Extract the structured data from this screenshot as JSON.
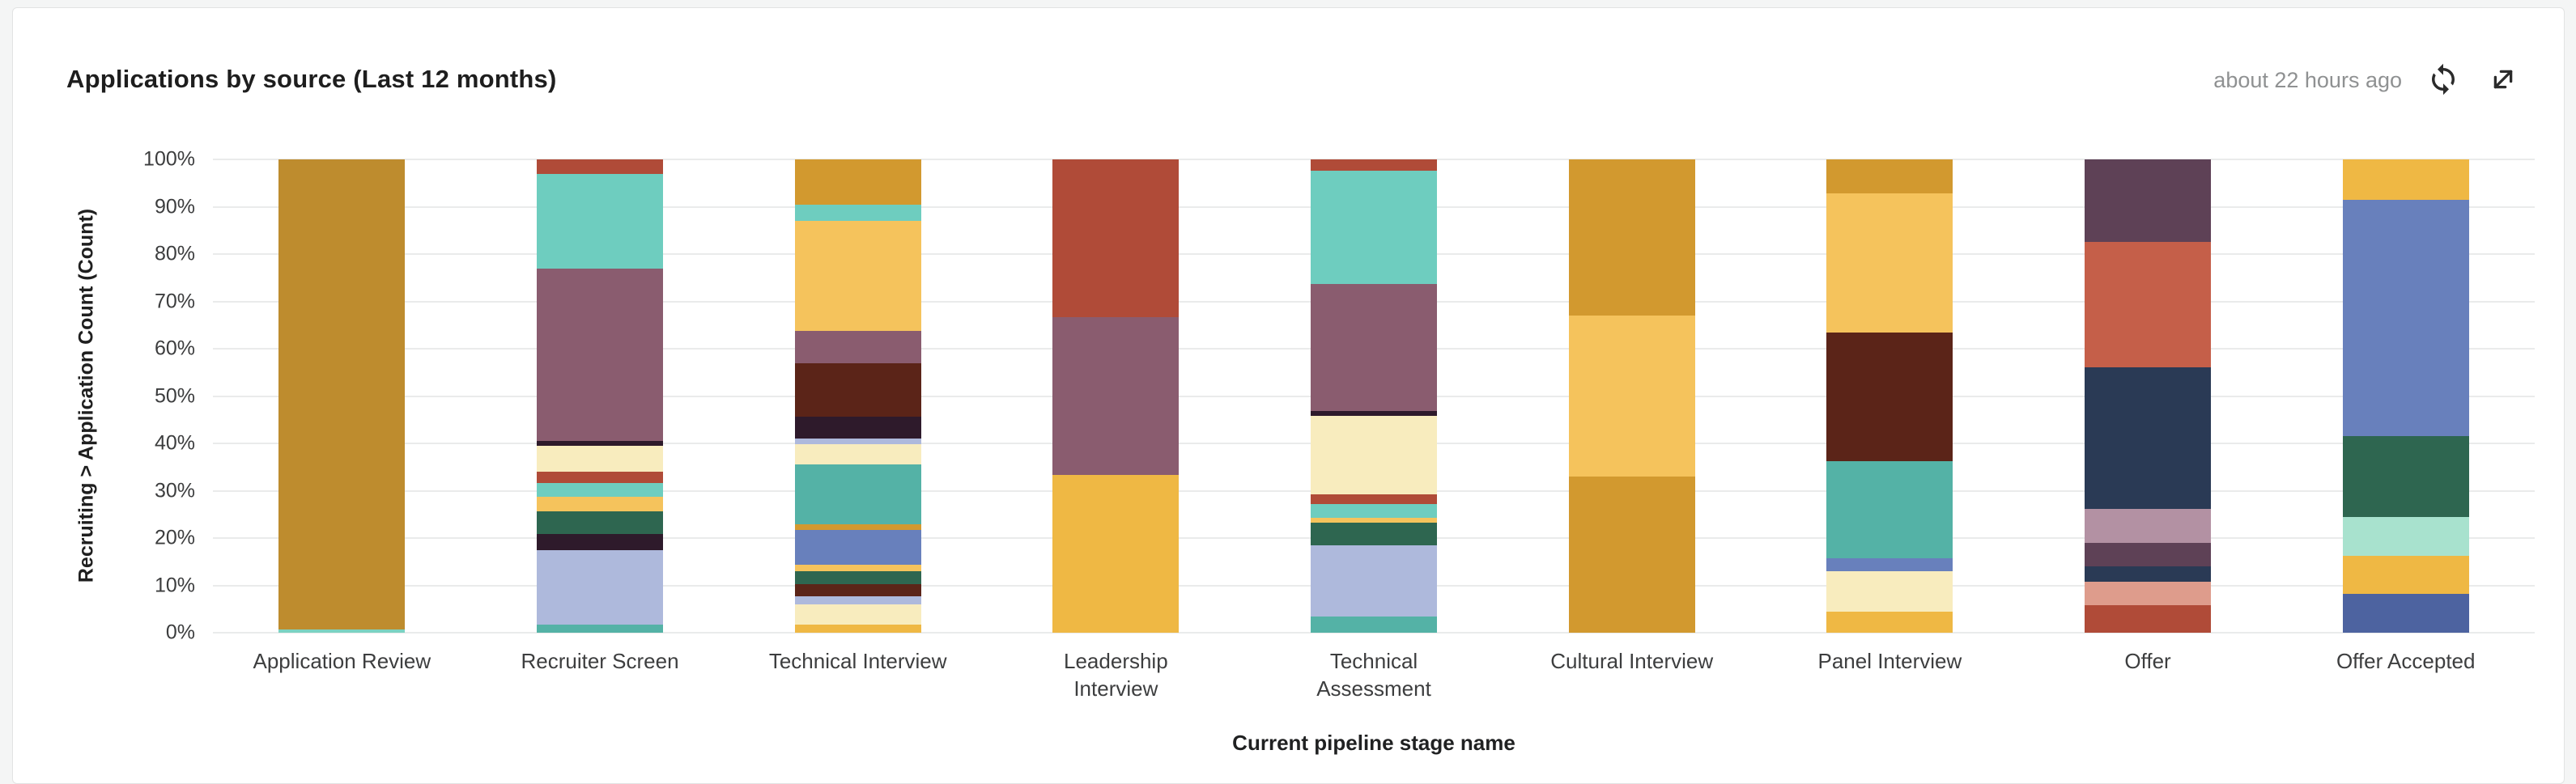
{
  "card": {
    "title": "Applications by source (Last 12 months)",
    "meta": {
      "updated": "about 22 hours ago"
    }
  },
  "chart_data": {
    "type": "bar",
    "variant": "stacked-percent",
    "title": "Applications by source (Last 12 months)",
    "xlabel": "Current pipeline stage name",
    "ylabel": "Recruiting > Application Count (Count)",
    "ylim": [
      0,
      100
    ],
    "y_ticks": [
      "0%",
      "10%",
      "20%",
      "30%",
      "40%",
      "50%",
      "60%",
      "70%",
      "80%",
      "90%",
      "100%"
    ],
    "grid": "horizontal",
    "legend": "none",
    "segments_order": "bottom-to-top",
    "palette": {
      "darkGoldenrod": "#be8c2e",
      "goldenrod": "#d2992f",
      "lightGold": "#f5c35c",
      "amber": "#efb844",
      "cream": "#f8ecbe",
      "rust": "#b04b38",
      "terracotta": "#c55f49",
      "salmon": "#de9c8c",
      "mauve": "#8a5c6f",
      "plum": "#5e4156",
      "pinkMauve": "#b391a3",
      "darkPurple": "#2e1a2b",
      "darkMaroon": "#5b2418",
      "teal": "#6ecdbf",
      "tealDark": "#54b2a6",
      "tealLight": "#7bd2c2",
      "mint": "#a8e2ce",
      "green": "#2e6650",
      "periwinkle": "#aeb9dc",
      "blue": "#6880bc",
      "navy": "#2a3a55",
      "darkBlue": "#4d63a0"
    },
    "categories": [
      "Application Review",
      "Recruiter Screen",
      "Technical Interview",
      "Leadership\nInterview",
      "Technical\nAssessment",
      "Cultural Interview",
      "Panel Interview",
      "Offer",
      "Offer Accepted"
    ],
    "bars": [
      {
        "category": "Application Review",
        "segments": [
          {
            "color": "tealLight",
            "value": 0.7
          },
          {
            "color": "darkGoldenrod",
            "value": 99.3
          }
        ]
      },
      {
        "category": "Recruiter Screen",
        "segments": [
          {
            "color": "tealDark",
            "value": 1.7
          },
          {
            "color": "periwinkle",
            "value": 15.8
          },
          {
            "color": "darkPurple",
            "value": 3.4
          },
          {
            "color": "green",
            "value": 4.8
          },
          {
            "color": "lightGold",
            "value": 3.0
          },
          {
            "color": "teal",
            "value": 2.9
          },
          {
            "color": "rust",
            "value": 2.4
          },
          {
            "color": "cream",
            "value": 5.5
          },
          {
            "color": "darkPurple",
            "value": 1.0
          },
          {
            "color": "mauve",
            "value": 36.5
          },
          {
            "color": "teal",
            "value": 20.0
          },
          {
            "color": "rust",
            "value": 3.0
          }
        ]
      },
      {
        "category": "Technical Interview",
        "segments": [
          {
            "color": "amber",
            "value": 1.7
          },
          {
            "color": "cream",
            "value": 4.3
          },
          {
            "color": "periwinkle",
            "value": 1.7
          },
          {
            "color": "darkMaroon",
            "value": 2.6
          },
          {
            "color": "green",
            "value": 2.7
          },
          {
            "color": "lightGold",
            "value": 1.3
          },
          {
            "color": "blue",
            "value": 7.5
          },
          {
            "color": "goldenrod",
            "value": 1.1
          },
          {
            "color": "tealDark",
            "value": 12.6
          },
          {
            "color": "cream",
            "value": 4.4
          },
          {
            "color": "periwinkle",
            "value": 1.2
          },
          {
            "color": "darkPurple",
            "value": 4.6
          },
          {
            "color": "darkMaroon",
            "value": 11.2
          },
          {
            "color": "mauve",
            "value": 6.8
          },
          {
            "color": "lightGold",
            "value": 23.3
          },
          {
            "color": "teal",
            "value": 3.5
          },
          {
            "color": "goldenrod",
            "value": 9.5
          }
        ]
      },
      {
        "category": "Leadership Interview",
        "segments": [
          {
            "color": "amber",
            "value": 33.3
          },
          {
            "color": "mauve",
            "value": 33.4
          },
          {
            "color": "rust",
            "value": 33.3
          }
        ]
      },
      {
        "category": "Technical Assessment",
        "segments": [
          {
            "color": "tealDark",
            "value": 3.5
          },
          {
            "color": "periwinkle",
            "value": 14.9
          },
          {
            "color": "green",
            "value": 4.9
          },
          {
            "color": "lightGold",
            "value": 0.9
          },
          {
            "color": "teal",
            "value": 3.0
          },
          {
            "color": "rust",
            "value": 2.1
          },
          {
            "color": "cream",
            "value": 16.5
          },
          {
            "color": "darkPurple",
            "value": 1.0
          },
          {
            "color": "mauve",
            "value": 26.9
          },
          {
            "color": "teal",
            "value": 23.9
          },
          {
            "color": "rust",
            "value": 2.4
          }
        ]
      },
      {
        "category": "Cultural Interview",
        "segments": [
          {
            "color": "goldenrod",
            "value": 33.0
          },
          {
            "color": "lightGold",
            "value": 34.0
          },
          {
            "color": "goldenrod",
            "value": 33.0
          }
        ]
      },
      {
        "category": "Panel Interview",
        "segments": [
          {
            "color": "amber",
            "value": 4.5
          },
          {
            "color": "cream",
            "value": 8.5
          },
          {
            "color": "blue",
            "value": 2.7
          },
          {
            "color": "tealDark",
            "value": 20.5
          },
          {
            "color": "darkMaroon",
            "value": 27.3
          },
          {
            "color": "lightGold",
            "value": 29.3
          },
          {
            "color": "goldenrod",
            "value": 7.2
          }
        ]
      },
      {
        "category": "Offer",
        "segments": [
          {
            "color": "rust",
            "value": 5.9
          },
          {
            "color": "salmon",
            "value": 4.8
          },
          {
            "color": "navy",
            "value": 3.4
          },
          {
            "color": "plum",
            "value": 4.8
          },
          {
            "color": "pinkMauve",
            "value": 7.2
          },
          {
            "color": "navy",
            "value": 30.0
          },
          {
            "color": "terracotta",
            "value": 26.4
          },
          {
            "color": "plum",
            "value": 17.5
          }
        ]
      },
      {
        "category": "Offer Accepted",
        "segments": [
          {
            "color": "darkBlue",
            "value": 8.2
          },
          {
            "color": "amber",
            "value": 8.0
          },
          {
            "color": "mint",
            "value": 8.2
          },
          {
            "color": "green",
            "value": 17.2
          },
          {
            "color": "blue",
            "value": 49.9
          },
          {
            "color": "amber",
            "value": 8.5
          }
        ]
      }
    ]
  }
}
